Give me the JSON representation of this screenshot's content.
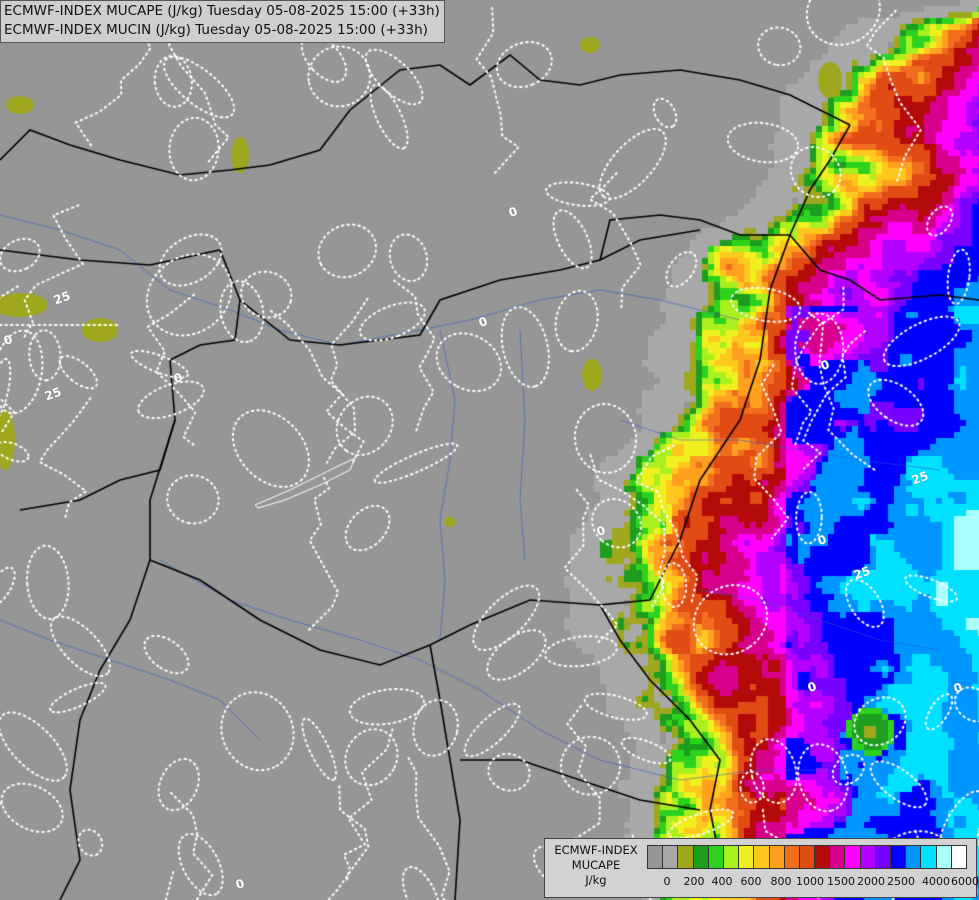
{
  "header": {
    "line1": "ECMWF-INDEX MUCAPE (J/kg) Tuesday 05-08-2025 15:00 (+33h)",
    "line2": "ECMWF-INDEX MUCIN (J/kg) Tuesday 05-08-2025 15:00 (+33h)"
  },
  "legend": {
    "line1": "ECMWF-INDEX",
    "line2": "MUCAPE",
    "line3": "J/kg",
    "colors": [
      "#969696",
      "#a8a8a8",
      "#9fa71e",
      "#1e9e1e",
      "#2dd21e",
      "#aaf01e",
      "#f0f01e",
      "#ffc81e",
      "#ffa01e",
      "#f06e1e",
      "#e14b14",
      "#b40a0a",
      "#d7008c",
      "#ff00ff",
      "#b400ff",
      "#7800ff",
      "#0000ff",
      "#0096ff",
      "#00e1ff",
      "#aaffff",
      "#ffffff"
    ],
    "tick_labels": [
      "0",
      "200",
      "400",
      "600",
      "800",
      "1000",
      "1500",
      "2000",
      "2500",
      "4000",
      "6000"
    ]
  },
  "contour_labels": [
    "25",
    "0",
    "25",
    "0",
    "25",
    "0",
    "0",
    "0",
    "0",
    "0",
    "0",
    "25",
    "0",
    "0"
  ]
}
